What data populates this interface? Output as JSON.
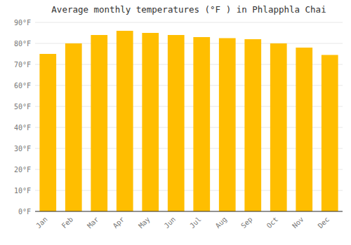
{
  "chart_data": {
    "type": "bar",
    "title": "Average monthly temperatures (°F ) in Phlapphla Chai",
    "categories": [
      "Jan",
      "Feb",
      "Mar",
      "Apr",
      "May",
      "Jun",
      "Jul",
      "Aug",
      "Sep",
      "Oct",
      "Nov",
      "Dec"
    ],
    "values": [
      75,
      80,
      84,
      86,
      85,
      84,
      83,
      82.5,
      82,
      80,
      78,
      74.5
    ],
    "color": "#FFBE00",
    "ylim": [
      0,
      90
    ],
    "yticks": [
      {
        "value": 0,
        "label": "0°F"
      },
      {
        "value": 10,
        "label": "10°F"
      },
      {
        "value": 20,
        "label": "20°F"
      },
      {
        "value": 30,
        "label": "30°F"
      },
      {
        "value": 40,
        "label": "40°F"
      },
      {
        "value": 50,
        "label": "50°F"
      },
      {
        "value": 60,
        "label": "60°F"
      },
      {
        "value": 70,
        "label": "70°F"
      },
      {
        "value": 80,
        "label": "80°F"
      },
      {
        "value": 90,
        "label": "90°F"
      }
    ],
    "grid": true
  }
}
